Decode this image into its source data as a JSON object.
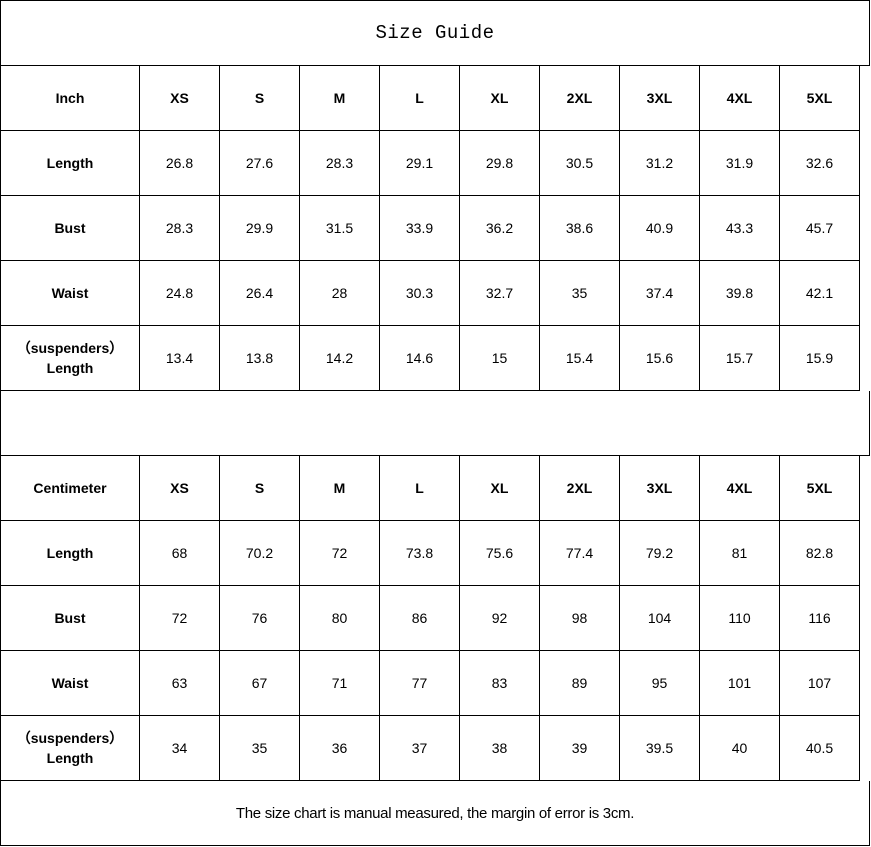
{
  "title": "Size Guide",
  "sizes": [
    "XS",
    "S",
    "M",
    "L",
    "XL",
    "2XL",
    "3XL",
    "4XL",
    "5XL"
  ],
  "tables": [
    {
      "unit": "Inch",
      "rows": [
        {
          "label": "Length",
          "values": [
            "26.8",
            "27.6",
            "28.3",
            "29.1",
            "29.8",
            "30.5",
            "31.2",
            "31.9",
            "32.6"
          ]
        },
        {
          "label": "Bust",
          "values": [
            "28.3",
            "29.9",
            "31.5",
            "33.9",
            "36.2",
            "38.6",
            "40.9",
            "43.3",
            "45.7"
          ]
        },
        {
          "label": "Waist",
          "values": [
            "24.8",
            "26.4",
            "28",
            "30.3",
            "32.7",
            "35",
            "37.4",
            "39.8",
            "42.1"
          ]
        },
        {
          "label": "（suspenders）\nLength",
          "values": [
            "13.4",
            "13.8",
            "14.2",
            "14.6",
            "15",
            "15.4",
            "15.6",
            "15.7",
            "15.9"
          ]
        }
      ]
    },
    {
      "unit": "Centimeter",
      "rows": [
        {
          "label": "Length",
          "values": [
            "68",
            "70.2",
            "72",
            "73.8",
            "75.6",
            "77.4",
            "79.2",
            "81",
            "82.8"
          ]
        },
        {
          "label": "Bust",
          "values": [
            "72",
            "76",
            "80",
            "86",
            "92",
            "98",
            "104",
            "110",
            "116"
          ]
        },
        {
          "label": "Waist",
          "values": [
            "63",
            "67",
            "71",
            "77",
            "83",
            "89",
            "95",
            "101",
            "107"
          ]
        },
        {
          "label": "（suspenders）\nLength",
          "values": [
            "34",
            "35",
            "36",
            "37",
            "38",
            "39",
            "39.5",
            "40",
            "40.5"
          ]
        }
      ]
    }
  ],
  "note": "The size chart is manual measured, the margin of error is 3cm."
}
